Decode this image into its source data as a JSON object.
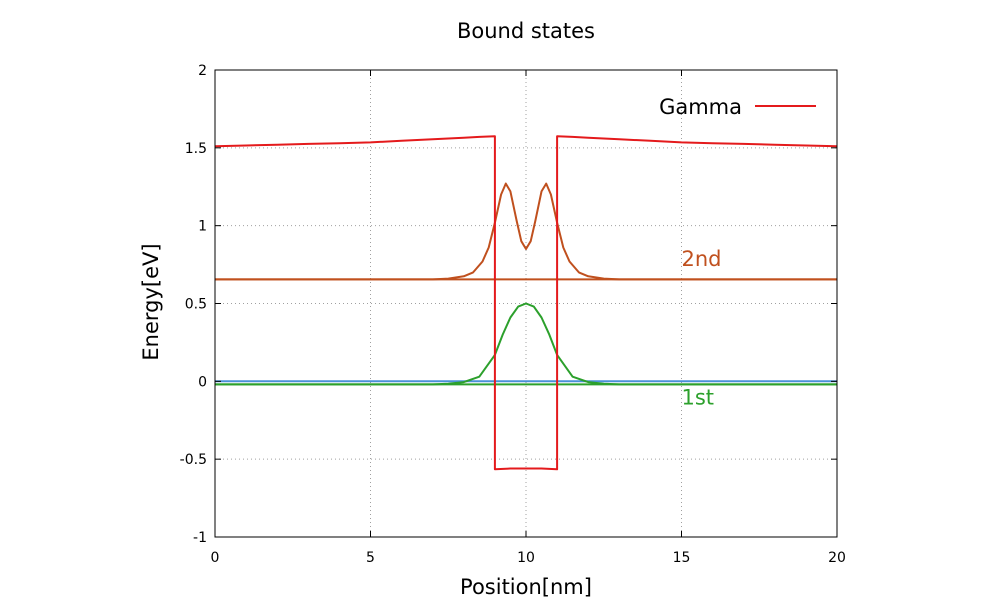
{
  "chart_data": {
    "type": "line",
    "title": "Bound states",
    "xlabel": "Position[nm]",
    "ylabel": "Energy[eV]",
    "xlim": [
      0,
      20
    ],
    "ylim": [
      -1,
      2
    ],
    "xticks": [
      0,
      5,
      10,
      15,
      20
    ],
    "xtick_labels": [
      "0",
      "5",
      "10",
      "15",
      "20"
    ],
    "yticks": [
      -1,
      -0.5,
      0,
      0.5,
      1,
      1.5,
      2
    ],
    "ytick_labels": [
      "-1",
      "-0.5",
      "0",
      "0.5",
      "1",
      "1.5",
      "2"
    ],
    "grid": true,
    "legend_position": "top-right",
    "series": [
      {
        "name": "Gamma",
        "color": "#e41a1c",
        "x": [
          0,
          1,
          2,
          3,
          4,
          5,
          6,
          7,
          8,
          8.5,
          9,
          9,
          9.5,
          10,
          10.5,
          11,
          11,
          11.5,
          12,
          13,
          14,
          15,
          16,
          17,
          18,
          19,
          20
        ],
        "y": [
          1.51,
          1.515,
          1.52,
          1.525,
          1.53,
          1.535,
          1.545,
          1.555,
          1.565,
          1.57,
          1.575,
          -0.565,
          -0.56,
          -0.56,
          -0.56,
          -0.565,
          1.575,
          1.57,
          1.565,
          1.555,
          1.545,
          1.535,
          1.53,
          1.525,
          1.52,
          1.515,
          1.51
        ]
      },
      {
        "color": "#c0501e",
        "x": [
          0,
          7,
          7.5,
          8,
          8.3,
          8.6,
          8.8,
          9,
          9.2,
          9.35,
          9.5,
          9.7,
          9.85,
          10,
          10.15,
          10.3,
          10.5,
          10.65,
          10.8,
          11,
          11.2,
          11.4,
          11.7,
          12,
          12.5,
          13,
          20
        ],
        "y": [
          0.655,
          0.655,
          0.66,
          0.675,
          0.7,
          0.77,
          0.86,
          1.02,
          1.2,
          1.27,
          1.22,
          1.03,
          0.9,
          0.85,
          0.9,
          1.03,
          1.22,
          1.27,
          1.2,
          1.02,
          0.86,
          0.77,
          0.7,
          0.675,
          0.66,
          0.655,
          0.655
        ]
      },
      {
        "color": "#c0501e",
        "x": [
          0,
          20
        ],
        "y": [
          0.655,
          0.655
        ]
      },
      {
        "color": "#2ca02c",
        "x": [
          0,
          7,
          7.5,
          8,
          8.5,
          9,
          9.25,
          9.5,
          9.75,
          10,
          10.25,
          10.5,
          10.75,
          11,
          11.5,
          12,
          12.5,
          13,
          20
        ],
        "y": [
          -0.02,
          -0.02,
          -0.015,
          -0.005,
          0.03,
          0.17,
          0.3,
          0.41,
          0.48,
          0.5,
          0.48,
          0.41,
          0.3,
          0.17,
          0.03,
          -0.005,
          -0.015,
          -0.02,
          -0.02
        ]
      },
      {
        "color": "#2ca02c",
        "x": [
          0,
          20
        ],
        "y": [
          -0.02,
          -0.02
        ]
      },
      {
        "color": "#4a90d9",
        "x": [
          0,
          20
        ],
        "y": [
          0.0,
          0.0
        ]
      }
    ],
    "annotations": [
      {
        "text": "2nd",
        "x": 15,
        "y": 0.74,
        "color": "#c0501e"
      },
      {
        "text": "1st",
        "x": 15,
        "y": -0.15,
        "color": "#2ca02c"
      }
    ]
  }
}
